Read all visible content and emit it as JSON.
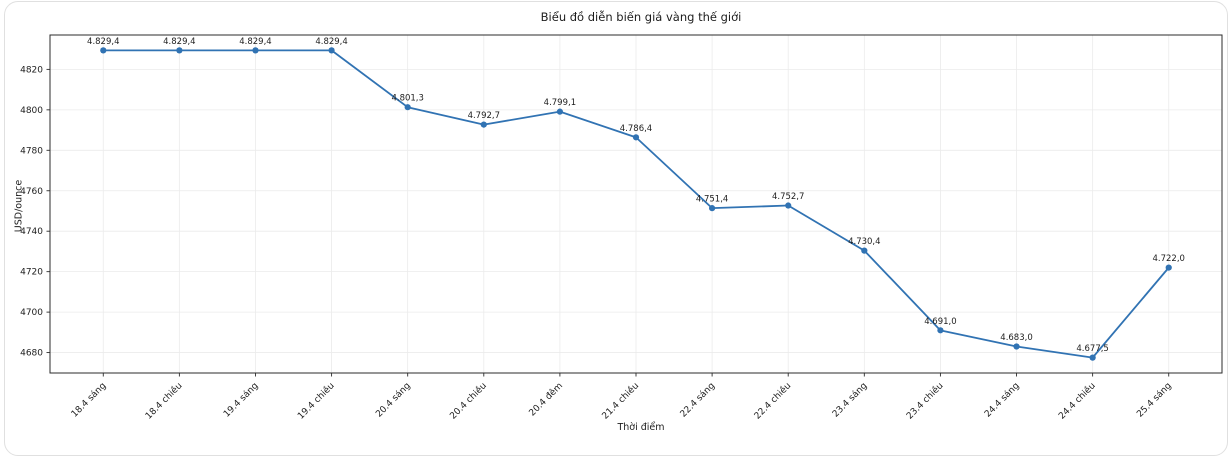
{
  "chart_data": {
    "type": "line",
    "title": "Biểu đồ diễn biến giá vàng thế giới",
    "xlabel": "Thời điểm",
    "ylabel": "USD/ounce",
    "categories": [
      "18.4 sáng",
      "18.4 chiều",
      "19.4 sáng",
      "19.4 chiều",
      "20.4 sáng",
      "20.4 chiều",
      "20.4 đêm",
      "21.4 chiều",
      "22.4 sáng",
      "22.4 chiều",
      "23.4 sáng",
      "23.4 chiều",
      "24.4 sáng",
      "24.4 chiều",
      "25.4 sáng"
    ],
    "values": [
      4829.4,
      4829.4,
      4829.4,
      4829.4,
      4801.3,
      4792.7,
      4799.1,
      4786.4,
      4751.4,
      4752.7,
      4730.4,
      4691.0,
      4683.0,
      4677.5,
      4722.0
    ],
    "point_labels": [
      "4.829,4",
      "4.829,4",
      "4.829,4",
      "4.829,4",
      "4.801,3",
      "4.792,7",
      "4.799,1",
      "4.786,4",
      "4.751,4",
      "4.752,7",
      "4.730,4",
      "4.691,0",
      "4.683,0",
      "4.677,5",
      "4.722,0"
    ],
    "yticks": [
      4680,
      4700,
      4720,
      4740,
      4760,
      4780,
      4800,
      4820
    ],
    "ylim": [
      4669.9,
      4837.0
    ],
    "x_margin": 0.7,
    "grid": true,
    "legend": "none",
    "colors": {
      "line": "#3173b3",
      "marker": "#3173b3",
      "frame": "#2b2b2b",
      "grid": "#ebebeb",
      "text": "#1d1d1d"
    }
  }
}
